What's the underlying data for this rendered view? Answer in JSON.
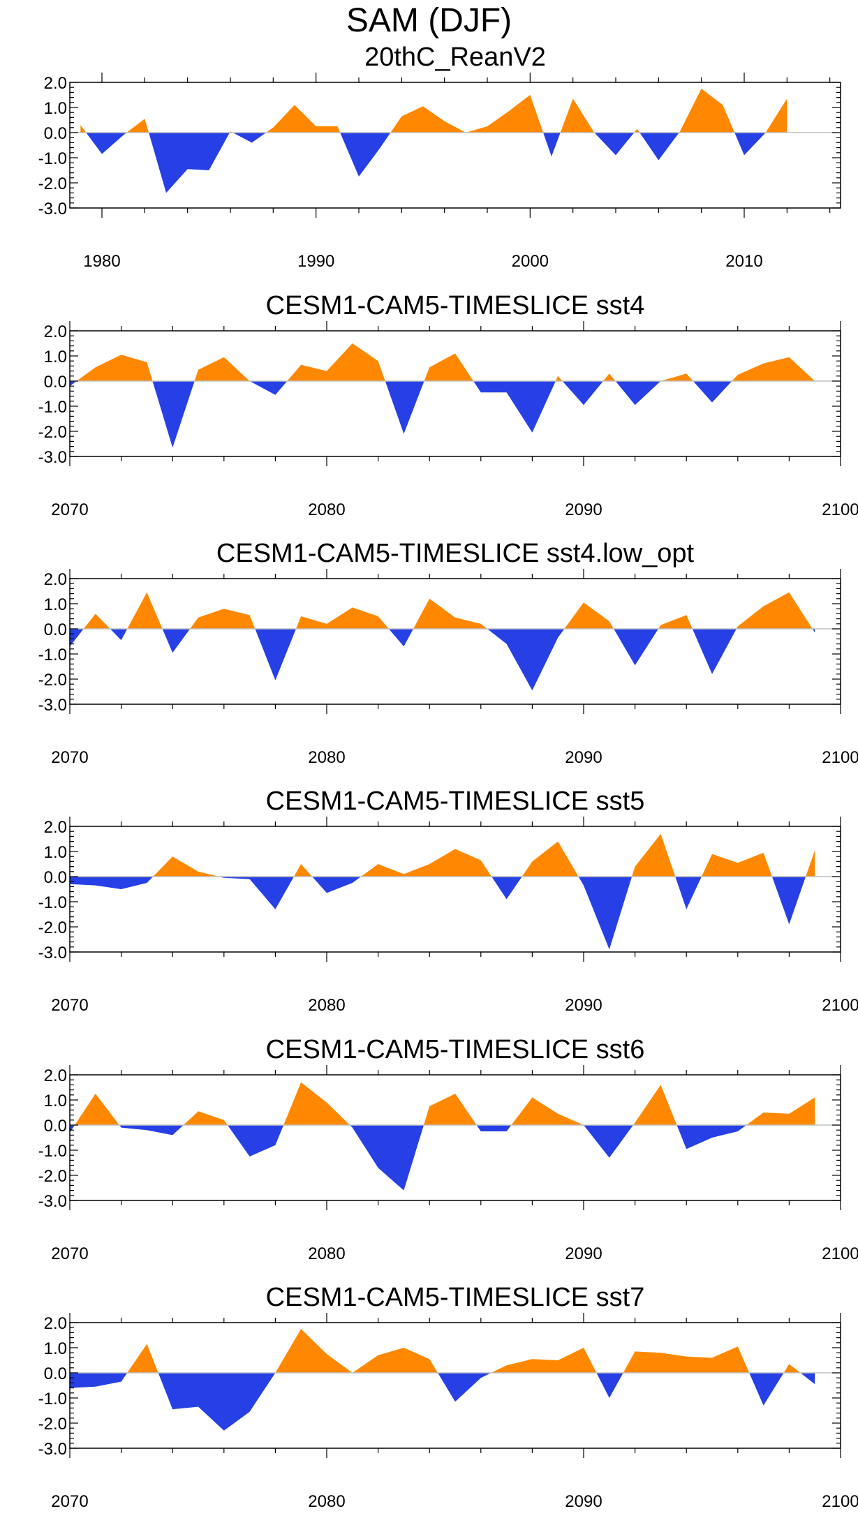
{
  "title": "SAM (DJF)",
  "colors": {
    "positive": "#ff8800",
    "negative": "#2640e6",
    "axis": "#000000",
    "zero": "#c0c0c0"
  },
  "chart_data": [
    {
      "type": "area",
      "title": "20thC_ReanV2",
      "xlim": [
        1978.5,
        2014.5
      ],
      "ylim": [
        -3.0,
        2.0
      ],
      "yticks": [
        -3.0,
        -2.0,
        -1.0,
        0.0,
        1.0,
        2.0
      ],
      "ytick_labels": [
        "-3.0",
        "-2.0",
        "-1.0",
        "0.0",
        "1.0",
        "2.0"
      ],
      "xticks": [
        1980,
        1990,
        2000,
        2010
      ],
      "xtick_labels": [
        "1980",
        "1990",
        "2000",
        "2010"
      ],
      "x_start": 1979,
      "values": [
        0.3,
        -0.85,
        -0.1,
        0.55,
        -2.4,
        -1.45,
        -1.5,
        0.05,
        -0.4,
        0.2,
        1.1,
        0.25,
        0.25,
        -1.75,
        -0.6,
        0.65,
        1.05,
        0.45,
        0.0,
        0.25,
        0.85,
        1.5,
        -0.95,
        1.35,
        0.0,
        -0.9,
        0.15,
        -1.1,
        0.05,
        1.75,
        1.1,
        -0.9,
        0.0,
        1.35
      ]
    },
    {
      "type": "area",
      "title": "CESM1-CAM5-TIMESLICE sst4",
      "xlim": [
        2070,
        2100
      ],
      "ylim": [
        -3.0,
        2.0
      ],
      "yticks": [
        -3.0,
        -2.0,
        -1.0,
        0.0,
        1.0,
        2.0
      ],
      "ytick_labels": [
        "-3.0",
        "-2.0",
        "-1.0",
        "0.0",
        "1.0",
        "2.0"
      ],
      "xticks": [
        2070,
        2080,
        2090,
        2100
      ],
      "xtick_labels": [
        "2070",
        "2080",
        "2090",
        "2100"
      ],
      "x_start": 2070,
      "values": [
        -0.2,
        0.55,
        1.05,
        0.75,
        -2.65,
        0.45,
        0.95,
        0.0,
        -0.55,
        0.65,
        0.4,
        1.5,
        0.8,
        -2.1,
        0.55,
        1.1,
        -0.45,
        -0.45,
        -2.05,
        0.2,
        -0.95,
        0.3,
        -0.95,
        0.0,
        0.3,
        -0.85,
        0.25,
        0.7,
        0.95,
        0.0
      ]
    },
    {
      "type": "area",
      "title": "CESM1-CAM5-TIMESLICE sst4.low_opt",
      "xlim": [
        2070,
        2100
      ],
      "ylim": [
        -3.0,
        2.0
      ],
      "yticks": [
        -3.0,
        -2.0,
        -1.0,
        0.0,
        1.0,
        2.0
      ],
      "ytick_labels": [
        "-3.0",
        "-2.0",
        "-1.0",
        "0.0",
        "1.0",
        "2.0"
      ],
      "xticks": [
        2070,
        2080,
        2090,
        2100
      ],
      "xtick_labels": [
        "2070",
        "2080",
        "2090",
        "2100"
      ],
      "x_start": 2070,
      "values": [
        -0.7,
        0.6,
        -0.45,
        1.45,
        -0.95,
        0.45,
        0.8,
        0.55,
        -2.05,
        0.5,
        0.2,
        0.85,
        0.5,
        -0.7,
        1.2,
        0.45,
        0.2,
        -0.6,
        -2.45,
        -0.35,
        1.05,
        0.3,
        -1.45,
        0.15,
        0.55,
        -1.8,
        0.1,
        0.9,
        1.45,
        -0.15
      ]
    },
    {
      "type": "area",
      "title": "CESM1-CAM5-TIMESLICE sst5",
      "xlim": [
        2070,
        2100
      ],
      "ylim": [
        -3.0,
        2.0
      ],
      "yticks": [
        -3.0,
        -2.0,
        -1.0,
        0.0,
        1.0,
        2.0
      ],
      "ytick_labels": [
        "-3.0",
        "-2.0",
        "-1.0",
        "0.0",
        "1.0",
        "2.0"
      ],
      "xticks": [
        2070,
        2080,
        2090,
        2100
      ],
      "xtick_labels": [
        "2070",
        "2080",
        "2090",
        "2100"
      ],
      "x_start": 2070,
      "values": [
        -0.3,
        -0.35,
        -0.5,
        -0.25,
        0.8,
        0.2,
        -0.05,
        -0.1,
        -1.3,
        0.5,
        -0.65,
        -0.25,
        0.5,
        0.1,
        0.5,
        1.1,
        0.65,
        -0.9,
        0.6,
        1.4,
        -0.35,
        -2.9,
        0.4,
        1.7,
        -1.3,
        0.9,
        0.55,
        0.95,
        -1.9,
        1.05
      ]
    },
    {
      "type": "area",
      "title": "CESM1-CAM5-TIMESLICE sst6",
      "xlim": [
        2070,
        2100
      ],
      "ylim": [
        -3.0,
        2.0
      ],
      "yticks": [
        -3.0,
        -2.0,
        -1.0,
        0.0,
        1.0,
        2.0
      ],
      "ytick_labels": [
        "-3.0",
        "-2.0",
        "-1.0",
        "0.0",
        "1.0",
        "2.0"
      ],
      "xticks": [
        2070,
        2080,
        2090,
        2100
      ],
      "xtick_labels": [
        "2070",
        "2080",
        "2090",
        "2100"
      ],
      "x_start": 2070,
      "values": [
        -0.3,
        1.25,
        -0.1,
        -0.2,
        -0.4,
        0.55,
        0.2,
        -1.25,
        -0.8,
        1.7,
        0.9,
        -0.1,
        -1.7,
        -2.6,
        0.75,
        1.25,
        -0.25,
        -0.25,
        1.1,
        0.45,
        0.0,
        -1.3,
        0.1,
        1.6,
        -0.95,
        -0.5,
        -0.25,
        0.5,
        0.45,
        1.1
      ]
    },
    {
      "type": "area",
      "title": "CESM1-CAM5-TIMESLICE sst7",
      "xlim": [
        2070,
        2100
      ],
      "ylim": [
        -3.0,
        2.0
      ],
      "yticks": [
        -3.0,
        -2.0,
        -1.0,
        0.0,
        1.0,
        2.0
      ],
      "ytick_labels": [
        "-3.0",
        "-2.0",
        "-1.0",
        "0.0",
        "1.0",
        "2.0"
      ],
      "xticks": [
        2070,
        2080,
        2090,
        2100
      ],
      "xtick_labels": [
        "2070",
        "2080",
        "2090",
        "2100"
      ],
      "x_start": 2070,
      "values": [
        -0.6,
        -0.55,
        -0.35,
        1.15,
        -1.45,
        -1.35,
        -2.3,
        -1.55,
        0.0,
        1.75,
        0.75,
        0.0,
        0.7,
        1.0,
        0.55,
        -1.15,
        -0.2,
        0.3,
        0.55,
        0.5,
        1.0,
        -1.0,
        0.85,
        0.8,
        0.65,
        0.6,
        1.05,
        -1.3,
        0.35,
        -0.45
      ]
    }
  ]
}
